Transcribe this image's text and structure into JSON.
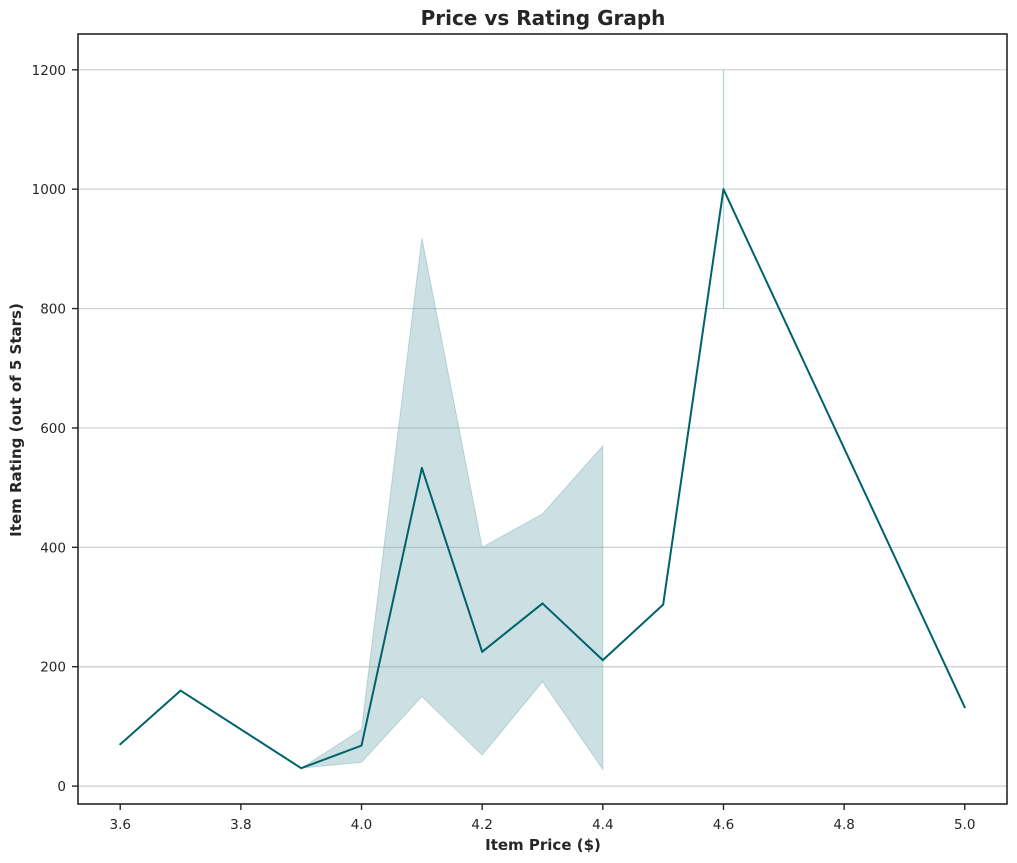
{
  "chart_data": {
    "type": "line",
    "title": "Price vs Rating Graph",
    "xlabel": "Item Price ($)",
    "ylabel": "Item Rating (out of 5 Stars)",
    "xlim": [
      3.53,
      5.07
    ],
    "ylim": [
      -30,
      1260
    ],
    "x_ticks": [
      3.6,
      3.8,
      4.0,
      4.2,
      4.4,
      4.6,
      4.8,
      5.0
    ],
    "x_tick_labels": [
      "3.6",
      "3.8",
      "4.0",
      "4.2",
      "4.4",
      "4.6",
      "4.8",
      "5.0"
    ],
    "y_ticks": [
      0,
      200,
      400,
      600,
      800,
      1000,
      1200
    ],
    "y_tick_labels": [
      "0",
      "200",
      "400",
      "600",
      "800",
      "1000",
      "1200"
    ],
    "grid": "horizontal",
    "colors": {
      "line": "#00626a",
      "band": "#5f9ea7",
      "grid": "#c8cdd0",
      "axes": "#262626"
    },
    "series": [
      {
        "x": [
          3.6,
          3.7,
          3.9,
          4.0,
          4.1,
          4.2,
          4.3,
          4.4,
          4.5,
          4.6,
          5.0
        ],
        "values": [
          70,
          160,
          30,
          68,
          533,
          225,
          306,
          211,
          304,
          1000,
          132
        ]
      }
    ],
    "confidence_band": [
      {
        "x": 3.9,
        "low": 30,
        "high": 30
      },
      {
        "x": 4.0,
        "low": 40,
        "high": 95
      },
      {
        "x": 4.1,
        "low": 150,
        "high": 918
      },
      {
        "x": 4.2,
        "low": 52,
        "high": 400
      },
      {
        "x": 4.3,
        "low": 175,
        "high": 456
      },
      {
        "x": 4.4,
        "low": 28,
        "high": 570
      }
    ],
    "error_segment": {
      "x": 4.6,
      "low": 800,
      "high": 1200
    }
  }
}
